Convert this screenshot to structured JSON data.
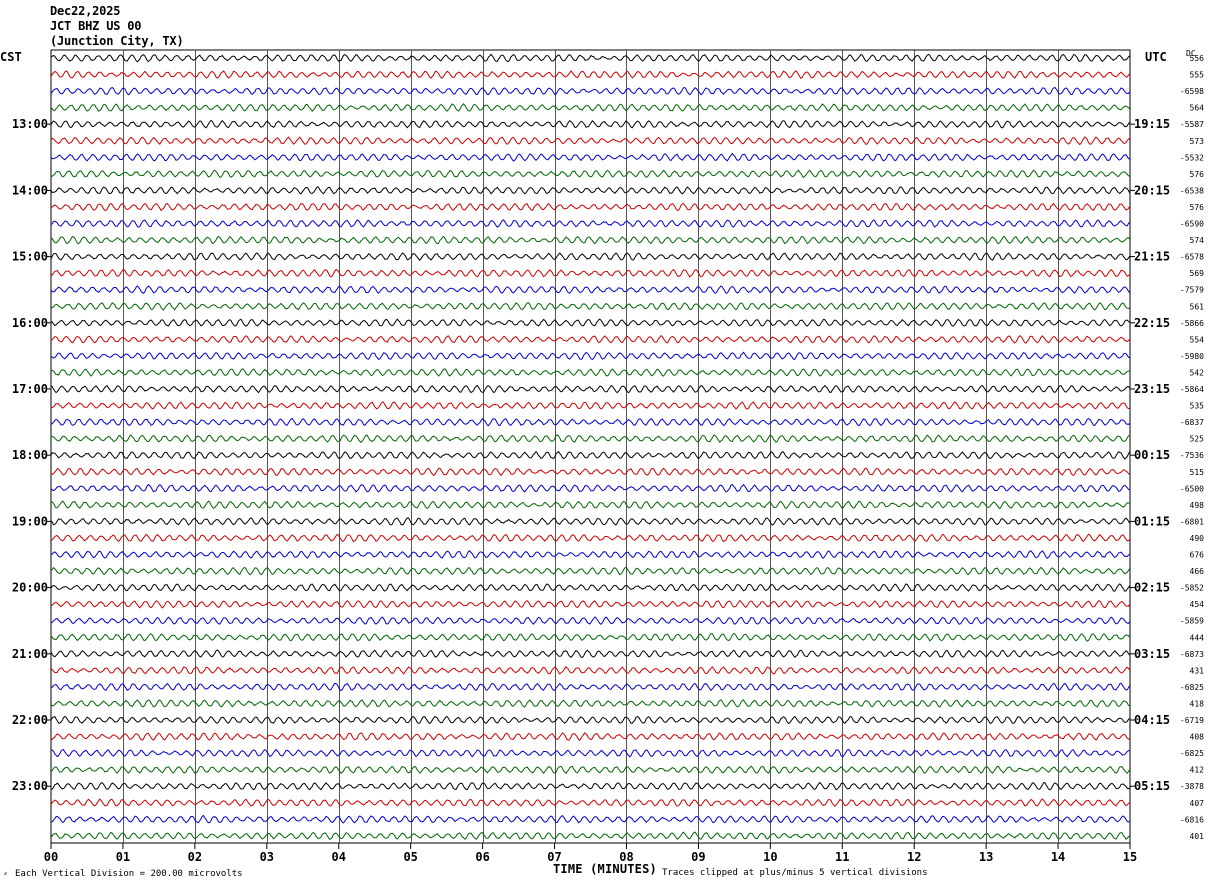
{
  "header": {
    "date": "Dec22,2025",
    "station": "JCT BHZ US 00",
    "location": "(Junction City, TX)"
  },
  "left_tz": "CST",
  "right_tz": "UTC",
  "dc_label": "DC",
  "footer": {
    "scale": "Each Vertical Division =  200.00 microvolts",
    "clip": "Traces clipped at plus/minus 5 vertical divisions"
  },
  "colors": {
    "black": "#000000",
    "red": "#cc0000",
    "blue": "#0000cc",
    "green": "#006600",
    "grid": "#555555"
  },
  "chart_data": {
    "type": "line",
    "title": "",
    "xlabel": "TIME (MINUTES)",
    "ylabel": "",
    "xlim": [
      0,
      15
    ],
    "x_ticks": [
      "00",
      "01",
      "02",
      "03",
      "04",
      "05",
      "06",
      "07",
      "08",
      "09",
      "10",
      "11",
      "12",
      "13",
      "14",
      "15"
    ],
    "traces_per_hour": 4,
    "minutes_per_trace": 15,
    "trace_color_cycle": [
      "black",
      "red",
      "blue",
      "green"
    ],
    "left_time_labels": [
      {
        "trace": 4,
        "label": "13:00"
      },
      {
        "trace": 8,
        "label": "14:00"
      },
      {
        "trace": 12,
        "label": "15:00"
      },
      {
        "trace": 16,
        "label": "16:00"
      },
      {
        "trace": 20,
        "label": "17:00"
      },
      {
        "trace": 24,
        "label": "18:00"
      },
      {
        "trace": 28,
        "label": "19:00"
      },
      {
        "trace": 32,
        "label": "20:00"
      },
      {
        "trace": 36,
        "label": "21:00"
      },
      {
        "trace": 40,
        "label": "22:00"
      },
      {
        "trace": 44,
        "label": "23:00"
      }
    ],
    "right_time_labels": [
      {
        "trace": 4,
        "label": "19:15"
      },
      {
        "trace": 8,
        "label": "20:15"
      },
      {
        "trace": 12,
        "label": "21:15"
      },
      {
        "trace": 16,
        "label": "22:15"
      },
      {
        "trace": 20,
        "label": "23:15"
      },
      {
        "trace": 24,
        "label": "00:15"
      },
      {
        "trace": 28,
        "label": "01:15"
      },
      {
        "trace": 32,
        "label": "02:15"
      },
      {
        "trace": 36,
        "label": "03:15"
      },
      {
        "trace": 40,
        "label": "04:15"
      },
      {
        "trace": 44,
        "label": "05:15"
      }
    ],
    "dc_offsets": [
      "556",
      "555",
      "-6598",
      "564",
      "-5587",
      "573",
      "-5532",
      "576",
      "-6538",
      "576",
      "-6590",
      "574",
      "-6578",
      "569",
      "-7579",
      "561",
      "-5866",
      "554",
      "-5980",
      "542",
      "-5864",
      "535",
      "-6837",
      "525",
      "-7536",
      "515",
      "-6500",
      "498",
      "-6801",
      "490",
      "676",
      "466",
      "-5852",
      "454",
      "-5859",
      "444",
      "-6873",
      "431",
      "-6825",
      "418",
      "-6719",
      "408",
      "-6825",
      "412",
      "-3878",
      "407",
      "-6816",
      "401"
    ]
  }
}
